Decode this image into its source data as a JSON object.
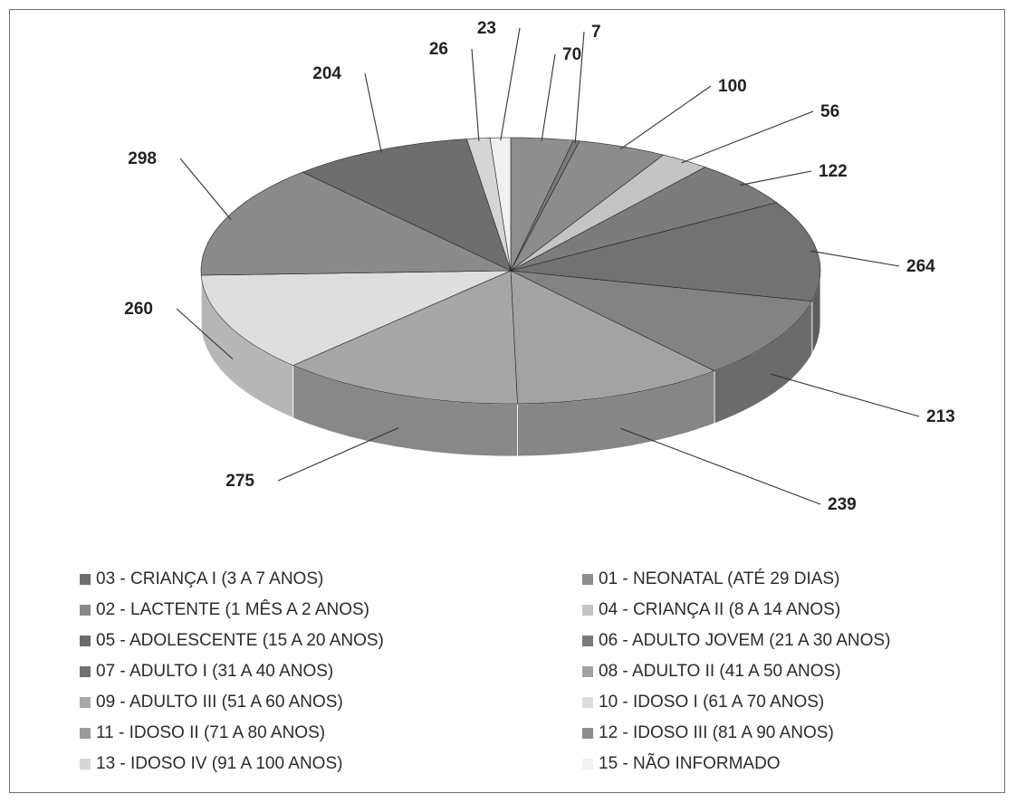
{
  "chart_data": {
    "type": "pie",
    "title": "",
    "slices": [
      {
        "label": "01 - NEONATAL (ATÉ 29 DIAS)",
        "value": 70,
        "color": "#8e8e8e"
      },
      {
        "label": "02 - LACTENTE (1 MÊS A 2 ANOS)",
        "value": 7,
        "color": "#7a7a7a"
      },
      {
        "label": "03 - CRIANÇA I (3 A 7 ANOS)",
        "value": 100,
        "color": "#8c8c8c"
      },
      {
        "label": "04 - CRIANÇA II (8 A 14 ANOS)",
        "value": 56,
        "color": "#c4c4c4"
      },
      {
        "label": "05 - ADOLESCENTE (15 A 20 ANOS)",
        "value": 122,
        "color": "#7b7b7b"
      },
      {
        "label": "06 - ADULTO JOVEM (21 A 30 ANOS)",
        "value": 264,
        "color": "#727272"
      },
      {
        "label": "07 - ADULTO I (31 A 40 ANOS)",
        "value": 213,
        "color": "#838383"
      },
      {
        "label": "08 - ADULTO II (41 A 50 ANOS)",
        "value": 239,
        "color": "#a3a3a3"
      },
      {
        "label": "09 - ADULTO III (51 A 60 ANOS)",
        "value": 275,
        "color": "#a6a6a6"
      },
      {
        "label": "10 - IDOSO I (61 A 70 ANOS)",
        "value": 260,
        "color": "#dedede"
      },
      {
        "label": "11 - IDOSO II (71 A 80 ANOS)",
        "value": 298,
        "color": "#8a8a8a"
      },
      {
        "label": "12 - IDOSO III (81 A 90 ANOS)",
        "value": 204,
        "color": "#6e6e6e"
      },
      {
        "label": "13 - IDOSO IV (91 A 100 ANOS)",
        "value": 26,
        "color": "#d5d5d5"
      },
      {
        "label": "15 - NÃO INFORMADO",
        "value": 23,
        "color": "#f0f0f0"
      }
    ],
    "legend": [
      {
        "label": "03 - CRIANÇA I (3 A 7 ANOS)",
        "color": "#6e6e6e"
      },
      {
        "label": "01 - NEONATAL (ATÉ 29 DIAS)",
        "color": "#8e8e8e"
      },
      {
        "label": "02 - LACTENTE (1 MÊS A 2 ANOS)",
        "color": "#8a8a8a"
      },
      {
        "label": "04 - CRIANÇA II (8 A 14 ANOS)",
        "color": "#c4c4c4"
      },
      {
        "label": "05 - ADOLESCENTE (15 A 20 ANOS)",
        "color": "#6b6b6b"
      },
      {
        "label": "06 - ADULTO JOVEM (21 A 30 ANOS)",
        "color": "#7a7a7a"
      },
      {
        "label": "07 - ADULTO I (31 A 40 ANOS)",
        "color": "#707070"
      },
      {
        "label": "08 - ADULTO II (41 A 50 ANOS)",
        "color": "#a3a3a3"
      },
      {
        "label": "09 - ADULTO III (51 A 60 ANOS)",
        "color": "#a8a8a8"
      },
      {
        "label": "10 - IDOSO I (61 A 70 ANOS)",
        "color": "#dcdcdc"
      },
      {
        "label": "11 - IDOSO II (71 A 80 ANOS)",
        "color": "#9a9a9a"
      },
      {
        "label": "12 - IDOSO III (81 A 90 ANOS)",
        "color": "#8d8d8d"
      },
      {
        "label": "13 - IDOSO IV (91 A 100 ANOS)",
        "color": "#d6d6d6"
      },
      {
        "label": "15 - NÃO INFORMADO",
        "color": "#f2f2f2"
      }
    ],
    "legend_position": "bottom",
    "style": "3d-pie"
  }
}
